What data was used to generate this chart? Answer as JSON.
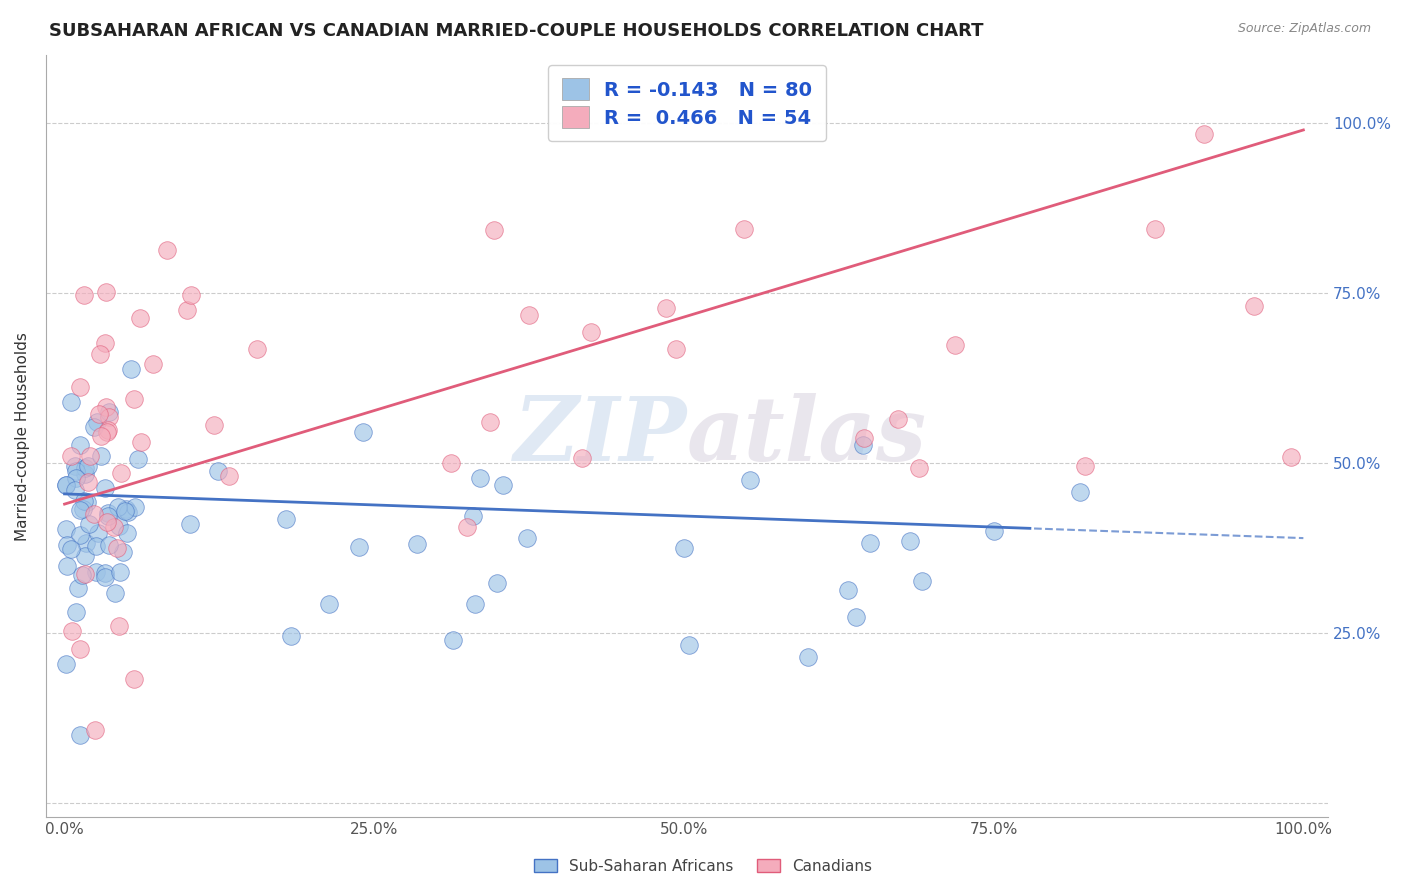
{
  "title": "SUBSAHARAN AFRICAN VS CANADIAN MARRIED-COUPLE HOUSEHOLDS CORRELATION CHART",
  "source": "Source: ZipAtlas.com",
  "ylabel": "Married-couple Households",
  "blue_color": "#4472c4",
  "blue_fill": "#9dc3e6",
  "pink_color": "#e05c7a",
  "pink_fill": "#f4acbc",
  "blue_R": -0.143,
  "blue_N": 80,
  "pink_R": 0.466,
  "pink_N": 54,
  "watermark": "ZIPatlas",
  "background_color": "#ffffff",
  "grid_color": "#cccccc",
  "title_fontsize": 13,
  "axis_fontsize": 11,
  "tick_fontsize": 11,
  "right_tick_color": "#4472c4"
}
